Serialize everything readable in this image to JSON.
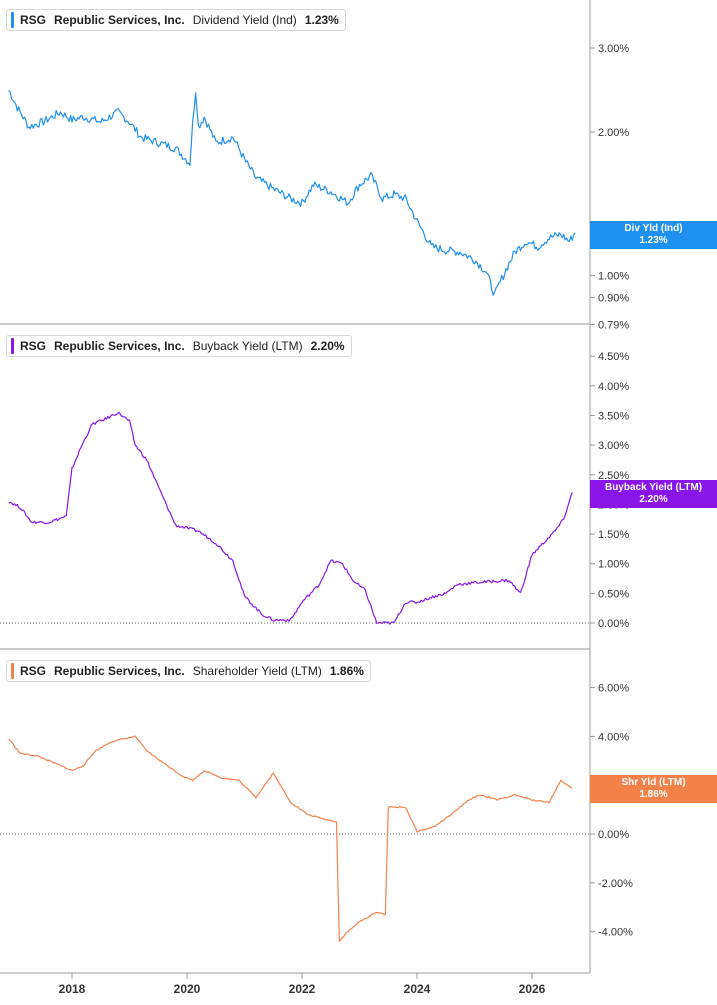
{
  "colors": {
    "div": "#1f8ff0",
    "buy": "#8a15e8",
    "shr": "#f3814a",
    "grid": "#cfcfcf",
    "text": "#333333"
  },
  "x_axis": {
    "ticks": [
      "2018",
      "2020",
      "2022",
      "2024",
      "2026"
    ]
  },
  "panels": [
    {
      "ticker": "RSG",
      "company": "Republic Services, Inc.",
      "metric": "Dividend Yield (Ind)",
      "value": "1.23%",
      "tag_line1": "Div Yld (Ind)",
      "tag_line2": "1.23%"
    },
    {
      "ticker": "RSG",
      "company": "Republic Services, Inc.",
      "metric": "Buyback Yield (LTM)",
      "value": "2.20%",
      "tag_line1": "Buyback Yield (LTM)",
      "tag_line2": "2.20%"
    },
    {
      "ticker": "RSG",
      "company": "Republic Services, Inc.",
      "metric": "Shareholder Yield (LTM)",
      "value": "1.86%",
      "tag_line1": "Shr Yld (LTM)",
      "tag_line2": "1.86%"
    }
  ],
  "chart_data": [
    {
      "type": "line",
      "title": "RSG Republic Services, Inc. Dividend Yield (Ind) 1.23%",
      "scale": "log",
      "y_ticks": [
        "3.00%",
        "2.00%",
        "1.00%",
        "0.90%",
        "0.79%"
      ],
      "y_tick_values": [
        3.0,
        2.0,
        1.0,
        0.9,
        0.79
      ],
      "series": [
        {
          "name": "Div Yld (Ind)",
          "x": [
            2016.9,
            2017.05,
            2017.25,
            2017.5,
            2017.8,
            2018.0,
            2018.2,
            2018.5,
            2018.8,
            2019.0,
            2019.2,
            2019.5,
            2019.8,
            2020.05,
            2020.15,
            2020.2,
            2020.3,
            2020.5,
            2020.8,
            2021.0,
            2021.2,
            2021.5,
            2021.8,
            2022.0,
            2022.2,
            2022.5,
            2022.8,
            2023.0,
            2023.2,
            2023.4,
            2023.6,
            2023.8,
            2024.0,
            2024.25,
            2024.5,
            2024.75,
            2025.0,
            2025.2,
            2025.35,
            2025.5,
            2025.7,
            2025.9,
            2026.1,
            2026.3,
            2026.5,
            2026.65,
            2026.75
          ],
          "values": [
            2.45,
            2.25,
            2.05,
            2.1,
            2.2,
            2.12,
            2.15,
            2.1,
            2.2,
            2.1,
            1.95,
            1.9,
            1.85,
            1.72,
            2.45,
            2.05,
            2.15,
            1.9,
            1.95,
            1.75,
            1.6,
            1.52,
            1.45,
            1.42,
            1.55,
            1.5,
            1.42,
            1.55,
            1.62,
            1.45,
            1.48,
            1.45,
            1.3,
            1.15,
            1.13,
            1.12,
            1.08,
            1.02,
            0.91,
            1.0,
            1.12,
            1.18,
            1.15,
            1.2,
            1.22,
            1.18,
            1.23
          ]
        }
      ]
    },
    {
      "type": "line",
      "title": "RSG Republic Services, Inc. Buyback Yield (LTM) 2.20%",
      "y_ticks": [
        "4.50%",
        "4.00%",
        "3.50%",
        "3.00%",
        "2.50%",
        "2.00%",
        "1.50%",
        "1.00%",
        "0.50%",
        "0.00%"
      ],
      "y_tick_values": [
        4.5,
        4.0,
        3.5,
        3.0,
        2.5,
        2.0,
        1.5,
        1.0,
        0.5,
        0.0
      ],
      "series": [
        {
          "name": "Buyback Yield (LTM)",
          "x": [
            2016.9,
            2017.1,
            2017.3,
            2017.6,
            2017.9,
            2018.0,
            2018.15,
            2018.35,
            2018.6,
            2018.8,
            2019.0,
            2019.1,
            2019.3,
            2019.5,
            2019.8,
            2020.0,
            2020.2,
            2020.5,
            2020.8,
            2021.0,
            2021.3,
            2021.5,
            2021.8,
            2022.0,
            2022.3,
            2022.5,
            2022.7,
            2022.9,
            2023.1,
            2023.3,
            2023.6,
            2023.8,
            2024.0,
            2024.3,
            2024.5,
            2024.7,
            2025.0,
            2025.3,
            2025.6,
            2025.8,
            2026.0,
            2026.2,
            2026.4,
            2026.55,
            2026.7
          ],
          "values": [
            2.05,
            1.95,
            1.7,
            1.7,
            1.8,
            2.6,
            2.95,
            3.35,
            3.45,
            3.55,
            3.4,
            3.0,
            2.75,
            2.3,
            1.65,
            1.6,
            1.55,
            1.35,
            1.05,
            0.45,
            0.15,
            0.05,
            0.05,
            0.35,
            0.65,
            1.05,
            1.0,
            0.7,
            0.55,
            0.0,
            0.0,
            0.35,
            0.35,
            0.45,
            0.5,
            0.65,
            0.68,
            0.7,
            0.72,
            0.5,
            1.15,
            1.35,
            1.55,
            1.75,
            2.2
          ]
        }
      ]
    },
    {
      "type": "line",
      "title": "RSG Republic Services, Inc. Shareholder Yield (LTM) 1.86%",
      "y_ticks": [
        "6.00%",
        "4.00%",
        "2.00%",
        "0.00%",
        "-2.00%",
        "-4.00%"
      ],
      "y_tick_values": [
        6.0,
        4.0,
        2.0,
        0.0,
        -2.0,
        -4.0
      ],
      "series": [
        {
          "name": "Shr Yld (LTM)",
          "x": [
            2016.9,
            2017.1,
            2017.4,
            2017.7,
            2018.0,
            2018.2,
            2018.4,
            2018.7,
            2018.9,
            2019.1,
            2019.3,
            2019.6,
            2019.9,
            2020.1,
            2020.3,
            2020.6,
            2020.9,
            2021.2,
            2021.5,
            2021.8,
            2022.1,
            2022.4,
            2022.6,
            2022.65,
            2022.75,
            2023.0,
            2023.3,
            2023.45,
            2023.5,
            2023.8,
            2024.0,
            2024.3,
            2024.6,
            2024.9,
            2025.1,
            2025.4,
            2025.7,
            2026.0,
            2026.3,
            2026.5,
            2026.7
          ],
          "values": [
            3.9,
            3.3,
            3.2,
            2.9,
            2.6,
            2.8,
            3.4,
            3.8,
            3.9,
            4.0,
            3.4,
            2.9,
            2.4,
            2.2,
            2.6,
            2.3,
            2.2,
            1.5,
            2.5,
            1.3,
            0.8,
            0.6,
            0.5,
            -4.4,
            -4.1,
            -3.6,
            -3.2,
            -3.3,
            1.1,
            1.1,
            0.1,
            0.3,
            0.8,
            1.4,
            1.6,
            1.4,
            1.6,
            1.4,
            1.3,
            2.2,
            1.86
          ]
        }
      ]
    }
  ]
}
